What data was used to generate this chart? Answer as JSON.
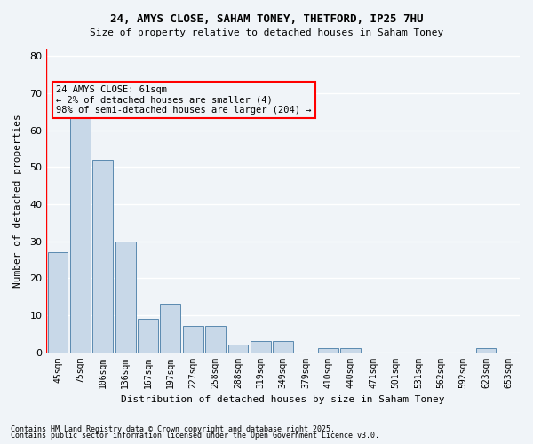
{
  "title1": "24, AMYS CLOSE, SAHAM TONEY, THETFORD, IP25 7HU",
  "title2": "Size of property relative to detached houses in Saham Toney",
  "xlabel": "Distribution of detached houses by size in Saham Toney",
  "ylabel": "Number of detached properties",
  "categories": [
    "45sqm",
    "75sqm",
    "106sqm",
    "136sqm",
    "167sqm",
    "197sqm",
    "227sqm",
    "258sqm",
    "288sqm",
    "319sqm",
    "349sqm",
    "379sqm",
    "410sqm",
    "440sqm",
    "471sqm",
    "501sqm",
    "531sqm",
    "562sqm",
    "592sqm",
    "623sqm",
    "653sqm"
  ],
  "values": [
    27,
    64,
    52,
    30,
    9,
    13,
    7,
    7,
    2,
    3,
    3,
    0,
    1,
    1,
    0,
    0,
    0,
    0,
    0,
    1,
    0
  ],
  "bar_color": "#c8d8e8",
  "bar_edge_color": "#5a8ab0",
  "ylim": [
    0,
    82
  ],
  "yticks": [
    0,
    10,
    20,
    30,
    40,
    50,
    60,
    70,
    80
  ],
  "annotation_text": "24 AMYS CLOSE: 61sqm\n← 2% of detached houses are smaller (4)\n98% of semi-detached houses are larger (204) →",
  "vline_x": 0,
  "bg_color": "#f0f4f8",
  "grid_color": "#ffffff",
  "footnote1": "Contains HM Land Registry data © Crown copyright and database right 2025.",
  "footnote2": "Contains public sector information licensed under the Open Government Licence v3.0."
}
